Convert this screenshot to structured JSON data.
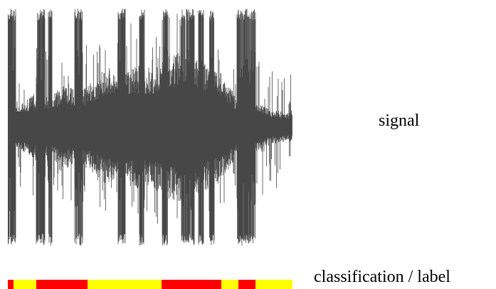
{
  "signal_caption": "signal",
  "label_caption": "classification / label",
  "colors": {
    "waveform": "#474747",
    "label_a": "#ff0000",
    "label_b": "#ffff00",
    "background": "#ffffff"
  },
  "classification_strip": [
    {
      "class": "red",
      "fraction": 0.02
    },
    {
      "class": "yellow",
      "fraction": 0.08
    },
    {
      "class": "red",
      "fraction": 0.18
    },
    {
      "class": "yellow",
      "fraction": 0.26
    },
    {
      "class": "red",
      "fraction": 0.21
    },
    {
      "class": "yellow",
      "fraction": 0.06
    },
    {
      "class": "red",
      "fraction": 0.06
    },
    {
      "class": "yellow",
      "fraction": 0.13
    }
  ]
}
